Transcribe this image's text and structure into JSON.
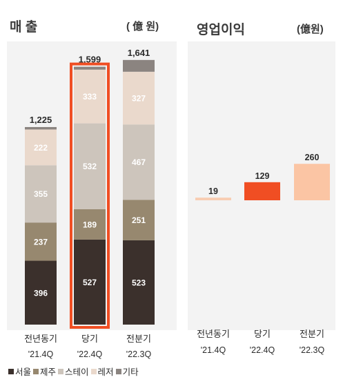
{
  "revenue": {
    "title": "매 출",
    "unit": "( 億 원)"
  },
  "profit": {
    "title": "영업이익",
    "unit": "(億원)"
  },
  "colors": {
    "서울": "#3b302c",
    "제주": "#97886f",
    "스테이": "#cdc5bc",
    "레저": "#ead9cc",
    "기타": "#8b8480",
    "highlight": "#f04e23",
    "profit_prev": "#f8cdb2",
    "profit_curr": "#f04e23",
    "profit_prior": "#fbc5a4"
  },
  "chart_data": [
    {
      "type": "bar",
      "stacked": true,
      "title": "매 출",
      "unit": "( 億 원)",
      "categories": [
        "전년동기 '21.4Q",
        "당기 '22.4Q",
        "전분기 '22.3Q"
      ],
      "category_lines": [
        [
          "전년동기",
          "'21.4Q"
        ],
        [
          "당기",
          "'22.4Q"
        ],
        [
          "전분기",
          "'22.3Q"
        ]
      ],
      "series": [
        {
          "name": "서울",
          "values": [
            396,
            527,
            523
          ]
        },
        {
          "name": "제주",
          "values": [
            237,
            189,
            251
          ]
        },
        {
          "name": "스테이",
          "values": [
            355,
            532,
            467
          ]
        },
        {
          "name": "레저",
          "values": [
            222,
            333,
            327
          ]
        },
        {
          "name": "기타",
          "values": [
            15,
            18,
            73
          ]
        }
      ],
      "segment_labels": [
        [
          "396",
          "237",
          "355",
          "222",
          ""
        ],
        [
          "527",
          "189",
          "532",
          "333",
          ""
        ],
        [
          "523",
          "251",
          "467",
          "327",
          ""
        ]
      ],
      "totals": [
        "1,225",
        "1,599",
        "1,641"
      ],
      "highlighted_category": "당기 '22.4Q",
      "legend": [
        "서울",
        "제주",
        "스테이",
        "레저",
        "기타"
      ],
      "legend_placement": "bottom",
      "grid": false
    },
    {
      "type": "bar",
      "title": "영업이익",
      "unit": "(億원)",
      "categories": [
        "전년동기 '21.4Q",
        "당기 '22.4Q",
        "전분기 '22.3Q"
      ],
      "category_lines": [
        [
          "전년동기",
          "'21.4Q"
        ],
        [
          "당기",
          "'22.4Q"
        ],
        [
          "전분기",
          "'22.3Q"
        ]
      ],
      "values": [
        19,
        129,
        260
      ],
      "value_labels": [
        "19",
        "129",
        "260"
      ],
      "grid": false
    }
  ]
}
